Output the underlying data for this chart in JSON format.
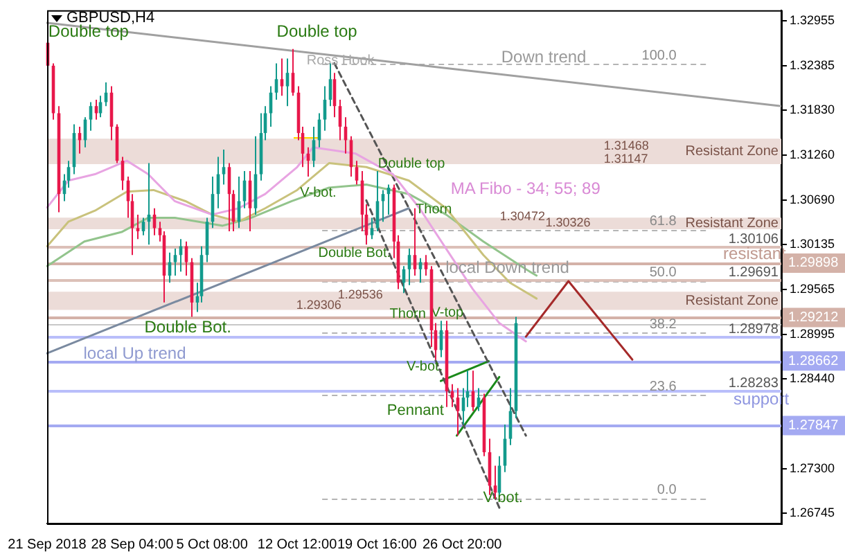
{
  "chart_data": {
    "type": "candlestick",
    "title": "GBPUSD,H4",
    "categories": [
      "21 Sep 2018",
      null,
      null,
      null,
      null,
      null,
      null,
      null,
      null,
      null,
      null,
      null,
      null,
      null,
      null,
      null,
      "28 Sep 04:00",
      null,
      null,
      null,
      null,
      null,
      null,
      null,
      null,
      null,
      null,
      null,
      null,
      null,
      null,
      "5 Oct 08:00",
      null,
      null,
      null,
      null,
      null,
      null,
      null,
      null,
      null,
      null,
      null,
      null,
      null,
      null,
      null,
      "12 Oct 12:00",
      null,
      null,
      null,
      null,
      null,
      null,
      null,
      null,
      null,
      null,
      null,
      null,
      null,
      null,
      "19 Oct 16:00",
      null,
      null,
      null,
      null,
      null,
      null,
      null,
      null,
      null,
      null,
      null,
      null,
      null,
      null,
      null,
      "26 Oct 20:00",
      null,
      null,
      null,
      null,
      null,
      null,
      null,
      null,
      null,
      null,
      null,
      null,
      null,
      null,
      null,
      null,
      null,
      null,
      null,
      null,
      null,
      null,
      null,
      null,
      null,
      null,
      null,
      null,
      null,
      null,
      null,
      null,
      null,
      null,
      null,
      null,
      null,
      null,
      null,
      null,
      null,
      null,
      null,
      null,
      null,
      null,
      null,
      null,
      null,
      null,
      null,
      null,
      null,
      null,
      null,
      null,
      null,
      null,
      null,
      null
    ],
    "ohlc": [
      [
        1.3268,
        1.3273,
        1.3234,
        1.3239
      ],
      [
        1.3239,
        1.3242,
        1.3171,
        1.3179
      ],
      [
        1.3179,
        1.3188,
        1.3054,
        1.3077
      ],
      [
        1.3077,
        1.3102,
        1.3068,
        1.3094
      ],
      [
        1.3094,
        1.3119,
        1.3085,
        1.3111
      ],
      [
        1.3111,
        1.3165,
        1.3102,
        1.3154
      ],
      [
        1.3154,
        1.3162,
        1.3128,
        1.3145
      ],
      [
        1.3145,
        1.3174,
        1.3136,
        1.3171
      ],
      [
        1.3171,
        1.3193,
        1.3157,
        1.3188
      ],
      [
        1.3188,
        1.3196,
        1.3171,
        1.3179
      ],
      [
        1.3179,
        1.3201,
        1.3174,
        1.3193
      ],
      [
        1.3193,
        1.3218,
        1.3188,
        1.3205
      ],
      [
        1.3205,
        1.3213,
        1.3145,
        1.3162
      ],
      [
        1.3162,
        1.3165,
        1.3116,
        1.3119
      ],
      [
        1.3119,
        1.3124,
        1.3082,
        1.3094
      ],
      [
        1.3094,
        1.3099,
        1.3047,
        1.3068
      ],
      [
        1.3068,
        1.3077,
        1.3,
        1.3034
      ],
      [
        1.3034,
        1.3051,
        1.302,
        1.303
      ],
      [
        1.303,
        1.3047,
        1.3025,
        1.3042
      ],
      [
        1.3042,
        1.3116,
        1.3013,
        1.3051
      ],
      [
        1.3051,
        1.3059,
        1.3025,
        1.3034
      ],
      [
        1.3034,
        1.3042,
        1.3017,
        1.3025
      ],
      [
        1.3025,
        1.303,
        1.294,
        1.2974
      ],
      [
        1.2974,
        1.3003,
        1.2965,
        1.2991
      ],
      [
        1.2991,
        1.3008,
        1.2974,
        1.3
      ],
      [
        1.3,
        1.302,
        1.2979,
        1.3011
      ],
      [
        1.3011,
        1.3017,
        1.2974,
        1.2991
      ],
      [
        1.2991,
        1.2996,
        1.2922,
        1.294
      ],
      [
        1.294,
        1.2965,
        1.2928,
        1.2948
      ],
      [
        1.2948,
        1.3011,
        1.294,
        1.3
      ],
      [
        1.3,
        1.3047,
        1.2991,
        1.3042
      ],
      [
        1.3042,
        1.3099,
        1.3034,
        1.3077
      ],
      [
        1.3077,
        1.3124,
        1.3059,
        1.3102
      ],
      [
        1.3102,
        1.3133,
        1.3089,
        1.3111
      ],
      [
        1.3111,
        1.3116,
        1.303,
        1.3077
      ],
      [
        1.3077,
        1.3082,
        1.303,
        1.3042
      ],
      [
        1.3042,
        1.3099,
        1.3034,
        1.3068
      ],
      [
        1.3068,
        1.3106,
        1.3059,
        1.3094
      ],
      [
        1.3094,
        1.3106,
        1.303,
        1.3059
      ],
      [
        1.3059,
        1.315,
        1.3051,
        1.3102
      ],
      [
        1.3102,
        1.3179,
        1.3094,
        1.3154
      ],
      [
        1.3154,
        1.3188,
        1.3145,
        1.3179
      ],
      [
        1.3179,
        1.3213,
        1.3162,
        1.3205
      ],
      [
        1.3205,
        1.3242,
        1.3196,
        1.3222
      ],
      [
        1.3222,
        1.3248,
        1.3201,
        1.3213
      ],
      [
        1.3213,
        1.3248,
        1.3188,
        1.323
      ],
      [
        1.323,
        1.326,
        1.3201,
        1.3205
      ],
      [
        1.3205,
        1.3213,
        1.3145,
        1.3154
      ],
      [
        1.3154,
        1.3162,
        1.3111,
        1.3128
      ],
      [
        1.3128,
        1.3136,
        1.3099,
        1.3119
      ],
      [
        1.3119,
        1.3162,
        1.3111,
        1.3145
      ],
      [
        1.3145,
        1.3179,
        1.3136,
        1.3171
      ],
      [
        1.3171,
        1.3213,
        1.3157,
        1.3196
      ],
      [
        1.3196,
        1.3242,
        1.3188,
        1.3222
      ],
      [
        1.3222,
        1.323,
        1.3174,
        1.3188
      ],
      [
        1.3188,
        1.3196,
        1.3145,
        1.3162
      ],
      [
        1.3162,
        1.3174,
        1.3128,
        1.3145
      ],
      [
        1.3145,
        1.315,
        1.3099,
        1.3111
      ],
      [
        1.3111,
        1.3119,
        1.3089,
        1.3094
      ],
      [
        1.3094,
        1.3106,
        1.303,
        1.3051
      ],
      [
        1.3051,
        1.3064,
        1.3013,
        1.3025
      ],
      [
        1.3025,
        1.3047,
        1.302,
        1.3034
      ],
      [
        1.3034,
        1.3106,
        1.303,
        1.3068
      ],
      [
        1.3068,
        1.3082,
        1.3042,
        1.3077
      ],
      [
        1.3077,
        1.3089,
        1.3051,
        1.3085
      ],
      [
        1.3085,
        1.3089,
        1.2996,
        1.3017
      ],
      [
        1.3017,
        1.3025,
        1.2957,
        1.2965
      ],
      [
        1.2965,
        1.2986,
        1.2952,
        1.2982
      ],
      [
        1.2982,
        1.3008,
        1.2962,
        1.3
      ],
      [
        1.3,
        1.3059,
        1.2974,
        1.2982
      ],
      [
        1.2982,
        1.2996,
        1.2965,
        1.2991
      ],
      [
        1.2991,
        1.3,
        1.2974,
        1.2982
      ],
      [
        1.2982,
        1.2986,
        1.2884,
        1.2905
      ],
      [
        1.2905,
        1.2914,
        1.2868,
        1.288
      ],
      [
        1.288,
        1.2917,
        1.2871,
        1.2905
      ],
      [
        1.2905,
        1.2917,
        1.2808,
        1.2828
      ],
      [
        1.2828,
        1.2837,
        1.2808,
        1.282
      ],
      [
        1.282,
        1.2832,
        1.2772,
        1.2803
      ],
      [
        1.2803,
        1.2832,
        1.2786,
        1.282
      ],
      [
        1.282,
        1.2854,
        1.2808,
        1.2828
      ],
      [
        1.2828,
        1.2854,
        1.2803,
        1.2808
      ],
      [
        1.2808,
        1.2832,
        1.2803,
        1.282
      ],
      [
        1.282,
        1.2825,
        1.2746,
        1.2751
      ],
      [
        1.2751,
        1.2768,
        1.2697,
        1.2709
      ],
      [
        1.2709,
        1.2734,
        1.2692,
        1.27
      ],
      [
        1.27,
        1.2746,
        1.2697,
        1.2734
      ],
      [
        1.2734,
        1.2786,
        1.2726,
        1.2768
      ],
      [
        1.2768,
        1.2832,
        1.276,
        1.2803
      ],
      [
        1.2803,
        1.2922,
        1.2794,
        1.2914
      ],
      null,
      null,
      null,
      null,
      null,
      null,
      null,
      null,
      null,
      null,
      null,
      null,
      null,
      null,
      null,
      null,
      null,
      null,
      null,
      null,
      null,
      null,
      null,
      null,
      null,
      null,
      null,
      null,
      null,
      null,
      null,
      null,
      null,
      null,
      null,
      null,
      null,
      null,
      null,
      null,
      null,
      null,
      null,
      null,
      null,
      null,
      null,
      null,
      null,
      null
    ],
    "colors": [
      "#e8174a",
      "#e8174a",
      "#e8174a",
      "#129a8c",
      "#129a8c",
      "#129a8c",
      "#e8174a",
      "#129a8c",
      "#129a8c",
      "#e8174a",
      "#129a8c",
      "#129a8c",
      "#e8174a",
      "#e8174a",
      "#e8174a",
      "#e8174a",
      "#e8174a",
      "#e8174a",
      "#129a8c",
      "#129a8c",
      "#e8174a",
      "#e8174a",
      "#e8174a",
      "#129a8c",
      "#129a8c",
      "#129a8c",
      "#e8174a",
      "#e8174a",
      "#129a8c",
      "#129a8c",
      "#129a8c",
      "#129a8c",
      "#129a8c",
      "#129a8c",
      "#e8174a",
      "#e8174a",
      "#129a8c",
      "#129a8c",
      "#e8174a",
      "#129a8c",
      "#129a8c",
      "#129a8c",
      "#129a8c",
      "#129a8c",
      "#e8174a",
      "#129a8c",
      "#e8174a",
      "#e8174a",
      "#e8174a",
      "#e8174a",
      "#129a8c",
      "#129a8c",
      "#129a8c",
      "#129a8c",
      "#e8174a",
      "#e8174a",
      "#e8174a",
      "#e8174a",
      "#e8174a",
      "#e8174a",
      "#e8174a",
      "#129a8c",
      "#129a8c",
      "#129a8c",
      "#129a8c",
      "#e8174a",
      "#e8174a",
      "#129a8c",
      "#129a8c",
      "#e8174a",
      "#129a8c",
      "#e8174a",
      "#e8174a",
      "#e8174a",
      "#129a8c",
      "#e8174a",
      "#e8174a",
      "#e8174a",
      "#129a8c",
      "#129a8c",
      "#e8174a",
      "#129a8c",
      "#e8174a",
      "#e8174a",
      "#e8174a",
      "#129a8c",
      "#129a8c",
      "#129a8c",
      "#129a8c",
      null,
      null,
      null,
      null,
      null,
      null,
      null,
      null,
      null,
      null,
      null,
      null,
      null,
      null,
      null,
      null,
      null,
      null,
      null,
      null,
      null,
      null,
      null,
      null,
      null,
      null,
      null,
      null,
      null,
      null,
      null,
      null,
      null,
      null,
      null,
      null,
      null,
      null,
      null,
      null,
      null,
      null,
      null,
      null,
      null,
      null,
      null,
      null,
      null,
      null
    ],
    "ylim": [
      1.2661,
      1.3309
    ],
    "yticks": [
      1.32955,
      1.32385,
      {
        "value": 1.3183,
        "label": "1.31830"
      },
      {
        "value": 1.3126,
        "label": "1.31260"
      },
      {
        "value": 1.3069,
        "label": "1.30690"
      },
      1.30135,
      1.29565,
      1.28995,
      {
        "value": 1.2844,
        "label": "1.28440"
      },
      {
        "value": 1.273,
        "label": "1.27300"
      },
      1.26745
    ],
    "series": [
      {
        "type": "line",
        "color": "#e8a4e2",
        "values": [
          1.306,
          null,
          null,
          null,
          1.3094,
          null,
          null,
          null,
          null,
          1.3102,
          null,
          null,
          null,
          null,
          null,
          1.3119,
          null,
          null,
          null,
          1.3102,
          null,
          null,
          null,
          null,
          1.3068,
          null,
          null,
          null,
          null,
          null,
          null,
          1.3051,
          null,
          null,
          null,
          null,
          1.3059,
          null,
          null,
          null,
          null,
          1.3077,
          null,
          null,
          null,
          null,
          null,
          1.3111,
          null,
          null,
          1.3136,
          null,
          null,
          null,
          null,
          null,
          null,
          null,
          1.3128,
          null,
          null,
          null,
          null,
          null,
          null,
          1.3102,
          null,
          null,
          null,
          null,
          1.3059,
          null,
          null,
          null,
          null,
          1.3008,
          null,
          null,
          null,
          null,
          1.2957,
          null,
          null,
          null,
          null,
          1.2914,
          null,
          null,
          null,
          null,
          1.2891,
          null,
          null,
          null,
          null,
          null,
          null,
          null,
          null,
          null,
          null,
          null,
          null,
          null,
          null,
          null,
          null,
          null,
          null,
          null,
          null,
          null,
          null,
          null,
          null,
          null,
          null,
          null,
          null,
          null,
          null,
          null,
          null,
          null,
          null,
          null,
          null,
          null,
          null,
          null,
          null,
          null,
          null,
          null,
          null,
          null,
          null,
          null,
          null
        ]
      },
      {
        "type": "line",
        "color": "#c9c27c",
        "values": [
          1.3011,
          null,
          null,
          null,
          1.3042,
          null,
          null,
          null,
          null,
          1.3056,
          null,
          null,
          null,
          null,
          null,
          1.308,
          null,
          null,
          null,
          null,
          1.3082,
          null,
          null,
          null,
          null,
          null,
          1.3068,
          null,
          null,
          null,
          null,
          1.3051,
          null,
          null,
          null,
          null,
          1.3042,
          null,
          null,
          null,
          null,
          1.3059,
          null,
          null,
          null,
          null,
          null,
          1.3082,
          null,
          null,
          null,
          null,
          null,
          1.3116,
          null,
          null,
          null,
          null,
          null,
          null,
          1.3111,
          null,
          null,
          null,
          null,
          null,
          null,
          null,
          1.3094,
          null,
          null,
          null,
          null,
          null,
          null,
          1.3059,
          null,
          null,
          null,
          null,
          null,
          null,
          1.3,
          null,
          null,
          null,
          null,
          1.2965,
          null,
          null,
          null,
          null,
          1.2945,
          null,
          null,
          null,
          null,
          null,
          null,
          null,
          null,
          null,
          null,
          null,
          null,
          null,
          null,
          null,
          null,
          null,
          null,
          null,
          null,
          null,
          null,
          null,
          null,
          null,
          null,
          null,
          null,
          null,
          null,
          null,
          null,
          null,
          null,
          null,
          null,
          null,
          null,
          null,
          null,
          null,
          null,
          null,
          null,
          null,
          null
        ]
      },
      {
        "type": "line",
        "color": "#92c48c",
        "values": [
          1.2986,
          null,
          null,
          null,
          null,
          null,
          null,
          1.3017,
          null,
          null,
          null,
          null,
          null,
          null,
          1.3029,
          null,
          null,
          null,
          null,
          1.3047,
          null,
          null,
          null,
          null,
          1.3047,
          null,
          null,
          null,
          null,
          null,
          null,
          null,
          null,
          1.3037,
          null,
          null,
          null,
          null,
          1.3046,
          null,
          null,
          null,
          null,
          null,
          null,
          null,
          1.3068,
          null,
          null,
          null,
          null,
          null,
          null,
          1.3085,
          null,
          null,
          null,
          null,
          null,
          null,
          1.3089,
          null,
          null,
          null,
          null,
          null,
          null,
          null,
          1.3077,
          null,
          null,
          null,
          null,
          null,
          null,
          1.3051,
          null,
          null,
          null,
          null,
          null,
          null,
          1.3017,
          null,
          null,
          null,
          null,
          null,
          null,
          null,
          1.2982,
          null,
          1.2974,
          null,
          null,
          null,
          null,
          null,
          null,
          null,
          null,
          null,
          null,
          null,
          null,
          null,
          null,
          null,
          null,
          null,
          null,
          null,
          null,
          null,
          null,
          null,
          null,
          null,
          null,
          null,
          null,
          null,
          null,
          null,
          null,
          null,
          null,
          null,
          null,
          null,
          null,
          null,
          null,
          null,
          null,
          null,
          null,
          null,
          null
        ]
      },
      {
        "type": "line",
        "color": "#a0a0a0",
        "values": [
          1.3293,
          null,
          null,
          null,
          null,
          null,
          null,
          null,
          null,
          null,
          null,
          null,
          null,
          null,
          null,
          null,
          null,
          null,
          null,
          null,
          null,
          null,
          null,
          null,
          null,
          null,
          null,
          null,
          null,
          null,
          null,
          null,
          null,
          null,
          null,
          null,
          null,
          null,
          null,
          null,
          null,
          null,
          null,
          null,
          null,
          null,
          null,
          null,
          null,
          null,
          null,
          null,
          null,
          null,
          null,
          null,
          null,
          null,
          null,
          null,
          null,
          null,
          null,
          null,
          null,
          null,
          null,
          null,
          null,
          null,
          null,
          null,
          null,
          null,
          null,
          null,
          null,
          null,
          null,
          null,
          null,
          null,
          null,
          null,
          null,
          null,
          null,
          null,
          null,
          null,
          null,
          null,
          null,
          null,
          null,
          null,
          null,
          null,
          null,
          null,
          null,
          null,
          null,
          null,
          null,
          null,
          null,
          null,
          null,
          null,
          null,
          null,
          null,
          null,
          null,
          null,
          null,
          null,
          null,
          null,
          null,
          null,
          null,
          null,
          null,
          null,
          null,
          null,
          null,
          null,
          null,
          null,
          null,
          null,
          null,
          null,
          null,
          null,
          1.3188
        ]
      },
      {
        "type": "line",
        "color": "#7a8aa0",
        "values": [
          1.2876,
          null,
          null,
          null,
          null,
          null,
          null,
          null,
          null,
          null,
          null,
          null,
          null,
          null,
          null,
          null,
          null,
          null,
          null,
          null,
          null,
          null,
          null,
          null,
          null,
          null,
          null,
          null,
          null,
          null,
          null,
          null,
          null,
          null,
          null,
          null,
          null,
          null,
          null,
          null,
          null,
          null,
          null,
          null,
          null,
          null,
          null,
          null,
          null,
          null,
          null,
          null,
          null,
          null,
          null,
          null,
          null,
          null,
          null,
          null,
          null,
          null,
          null,
          null,
          null,
          null,
          null,
          null,
          1.3059,
          null,
          null,
          null,
          null,
          null,
          null,
          null,
          null,
          null,
          null,
          null,
          null,
          null,
          null,
          null,
          null,
          null,
          null,
          null,
          null,
          null,
          null,
          null,
          null,
          null,
          null,
          null,
          null,
          null,
          null,
          null,
          null,
          null,
          null,
          null,
          null,
          null,
          null,
          null,
          null,
          null,
          null,
          null,
          null,
          null,
          null,
          null,
          null,
          null,
          null,
          null,
          null,
          null,
          null,
          null,
          null,
          null,
          null,
          null,
          null,
          null,
          null,
          null,
          null,
          null,
          null,
          null,
          null,
          null,
          null
        ]
      },
      {
        "type": "line",
        "color": "#555555",
        "line_style": "dashed",
        "values": [
          null,
          null,
          null,
          null,
          null,
          null,
          null,
          null,
          null,
          null,
          null,
          null,
          null,
          null,
          null,
          null,
          null,
          null,
          null,
          null,
          null,
          null,
          null,
          null,
          null,
          null,
          null,
          null,
          null,
          null,
          null,
          null,
          null,
          null,
          null,
          null,
          null,
          null,
          null,
          null,
          null,
          null,
          null,
          null,
          null,
          null,
          null,
          null,
          null,
          null,
          null,
          null,
          null,
          null,
          1.3242,
          null,
          null,
          null,
          null,
          null,
          null,
          null,
          null,
          null,
          null,
          null,
          null,
          null,
          null,
          null,
          null,
          null,
          null,
          null,
          null,
          null,
          null,
          null,
          null,
          null,
          null,
          null,
          null,
          null,
          null,
          null,
          null,
          null,
          null,
          null,
          1.2772,
          null,
          null,
          null,
          null,
          null,
          null,
          null,
          null,
          null,
          null,
          null,
          null,
          null,
          null,
          null,
          null,
          null,
          null,
          null,
          null,
          null,
          null,
          null,
          null,
          null,
          null,
          null,
          null,
          null,
          null,
          null,
          null,
          null,
          null,
          null,
          null,
          null,
          null,
          null,
          null,
          null,
          null,
          null,
          null,
          null,
          null,
          null,
          null
        ]
      },
      {
        "type": "line",
        "color": "#555555",
        "line_style": "dashed",
        "values": [
          null,
          null,
          null,
          null,
          null,
          null,
          null,
          null,
          null,
          null,
          null,
          null,
          null,
          null,
          null,
          null,
          null,
          null,
          null,
          null,
          null,
          null,
          null,
          null,
          null,
          null,
          null,
          null,
          null,
          null,
          null,
          null,
          null,
          null,
          null,
          null,
          null,
          null,
          null,
          null,
          null,
          null,
          null,
          null,
          null,
          null,
          null,
          null,
          null,
          null,
          null,
          null,
          null,
          null,
          null,
          null,
          null,
          null,
          null,
          null,
          1.3069,
          null,
          null,
          null,
          null,
          null,
          null,
          null,
          null,
          null,
          null,
          null,
          null,
          null,
          null,
          null,
          null,
          null,
          null,
          null,
          null,
          null,
          null,
          null,
          null,
          1.2681,
          null,
          null,
          null,
          null,
          null,
          null,
          null,
          null,
          null,
          null,
          null,
          null,
          null,
          null,
          null,
          null,
          null,
          null,
          null,
          null,
          null,
          null,
          null,
          null,
          null,
          null,
          null,
          null,
          null,
          null,
          null,
          null,
          null,
          null,
          null,
          null,
          null,
          null,
          null,
          null,
          null,
          null,
          null,
          null,
          null,
          null,
          null,
          null,
          null,
          null,
          null,
          null,
          null
        ]
      },
      {
        "type": "line",
        "color": "#1a8a1a",
        "values": [
          null,
          null,
          null,
          null,
          null,
          null,
          null,
          null,
          null,
          null,
          null,
          null,
          null,
          null,
          null,
          null,
          null,
          null,
          null,
          null,
          null,
          null,
          null,
          null,
          null,
          null,
          null,
          null,
          null,
          null,
          null,
          null,
          null,
          null,
          null,
          null,
          null,
          null,
          null,
          null,
          null,
          null,
          null,
          null,
          null,
          null,
          null,
          null,
          null,
          null,
          null,
          null,
          null,
          null,
          null,
          null,
          null,
          null,
          null,
          null,
          null,
          null,
          null,
          null,
          null,
          null,
          null,
          null,
          null,
          null,
          null,
          null,
          null,
          null,
          1.2841,
          null,
          null,
          null,
          null,
          null,
          null,
          null,
          null,
          1.2866,
          null,
          null,
          null,
          null,
          null,
          null,
          null,
          null,
          null,
          null,
          null,
          null,
          null,
          null,
          null,
          null,
          null,
          null,
          null,
          null,
          null,
          null,
          null,
          null,
          null,
          null,
          null,
          null,
          null,
          null,
          null,
          null,
          null,
          null,
          null,
          null,
          null,
          null,
          null,
          null,
          null,
          null,
          null,
          null,
          null,
          null,
          null,
          null,
          null,
          null,
          null,
          null,
          null,
          null,
          null
        ]
      },
      {
        "type": "line",
        "color": "#1a8a1a",
        "values": [
          null,
          null,
          null,
          null,
          null,
          null,
          null,
          null,
          null,
          null,
          null,
          null,
          null,
          null,
          null,
          null,
          null,
          null,
          null,
          null,
          null,
          null,
          null,
          null,
          null,
          null,
          null,
          null,
          null,
          null,
          null,
          null,
          null,
          null,
          null,
          null,
          null,
          null,
          null,
          null,
          null,
          null,
          null,
          null,
          null,
          null,
          null,
          null,
          null,
          null,
          null,
          null,
          null,
          null,
          null,
          null,
          null,
          null,
          null,
          null,
          null,
          null,
          null,
          null,
          null,
          null,
          null,
          null,
          null,
          null,
          null,
          null,
          null,
          null,
          null,
          null,
          null,
          1.2772,
          null,
          null,
          null,
          null,
          null,
          null,
          null,
          1.2846,
          null,
          null,
          null,
          null,
          null,
          null,
          null,
          null,
          null,
          null,
          null,
          null,
          null,
          null,
          null,
          null,
          null,
          null,
          null,
          null,
          null,
          null,
          null,
          null,
          null,
          null,
          null,
          null,
          null,
          null,
          null,
          null,
          null,
          null,
          null,
          null,
          null,
          null,
          null,
          null,
          null,
          null,
          null,
          null,
          null,
          null,
          null,
          null,
          null,
          null,
          null,
          null,
          null
        ]
      },
      {
        "type": "line",
        "color": "#a52a2a",
        "values": [
          null,
          null,
          null,
          null,
          null,
          null,
          null,
          null,
          null,
          null,
          null,
          null,
          null,
          null,
          null,
          null,
          null,
          null,
          null,
          null,
          null,
          null,
          null,
          null,
          null,
          null,
          null,
          null,
          null,
          null,
          null,
          null,
          null,
          null,
          null,
          null,
          null,
          null,
          null,
          null,
          null,
          null,
          null,
          null,
          null,
          null,
          null,
          null,
          null,
          null,
          null,
          null,
          null,
          null,
          null,
          null,
          null,
          null,
          null,
          null,
          null,
          null,
          null,
          null,
          null,
          null,
          null,
          null,
          null,
          null,
          null,
          null,
          null,
          null,
          null,
          null,
          null,
          null,
          null,
          null,
          null,
          null,
          null,
          null,
          null,
          null,
          null,
          null,
          null,
          null,
          1.2897,
          null,
          null,
          null,
          null,
          null,
          null,
          null,
          1.2967,
          null,
          null,
          null,
          null,
          null,
          null,
          null,
          null,
          null,
          null,
          null,
          1.2868,
          null,
          null,
          null,
          null,
          null,
          null,
          null,
          null,
          null,
          null,
          null,
          null,
          null,
          null,
          null,
          null,
          null,
          null,
          null,
          null,
          null,
          null,
          null,
          null,
          null,
          null,
          null,
          null
        ]
      }
    ],
    "bands": [
      {
        "axis": "y",
        "from": 1.31147,
        "to": 1.31468,
        "label": "Resistant Zone",
        "color": "#ecdcd8"
      },
      {
        "axis": "y",
        "from": 1.30326,
        "to": 1.30472,
        "label": "Resistant Zone",
        "color": "#ecdcd8"
      },
      {
        "axis": "y",
        "from": 1.29306,
        "to": 1.29536,
        "label": "Resistant Zone",
        "color": "#ecdcd8"
      }
    ],
    "ref_lines": [
      {
        "axis": "y",
        "value": 1.3241,
        "color": "#b4b4b4",
        "line_style": "dashed"
      },
      {
        "axis": "y",
        "value": 1.3032,
        "color": "#b4b4b4",
        "line_style": "dashed"
      },
      {
        "axis": "y",
        "value": 1.2967,
        "color": "#b4b4b4",
        "line_style": "dashed"
      },
      {
        "axis": "y",
        "value": 1.2902,
        "color": "#b4b4b4",
        "line_style": "dashed"
      },
      {
        "axis": "y",
        "value": 1.2823,
        "color": "#b4b4b4",
        "line_style": "dashed"
      },
      {
        "axis": "y",
        "value": 1.2693,
        "color": "#b4b4b4",
        "line_style": "dashed"
      },
      {
        "axis": "y",
        "value": 1.30106,
        "label": "1.30106",
        "color": "#dcc0b8"
      },
      {
        "axis": "y",
        "value": 1.29898,
        "label": "1.29898",
        "color": "#d4b2a8"
      },
      {
        "axis": "y",
        "value": 1.29691,
        "label": "1.29691",
        "color": "#dcc0b8"
      },
      {
        "axis": "y",
        "value": 1.29212,
        "label": "1.29212",
        "color": "#d4b2a8"
      },
      {
        "axis": "y",
        "value": 1.2912,
        "color": "#c8c8c8"
      },
      {
        "axis": "y",
        "value": 1.28978,
        "label": "1.28978",
        "color": "#b9befa"
      },
      {
        "axis": "y",
        "value": 1.28662,
        "label": "1.28662",
        "color": "#a4aaf2"
      },
      {
        "axis": "y",
        "value": 1.28283,
        "label": "1.28283",
        "color": "#b9befa"
      },
      {
        "axis": "y",
        "value": 1.27847,
        "label": "1.27847",
        "color": "#a4aaf2"
      }
    ],
    "annotations": [
      {
        "text": "Double top",
        "y": 1.3292
      },
      "Double top",
      {
        "text": "Ross Hook",
        "y": 1.3254
      },
      "Down trend",
      {
        "text": "Double Bot.",
        "y": 1.2919
      },
      "local Up trend",
      {
        "text": "V-bot.",
        "y": 1.3087
      },
      "Double top",
      {
        "text": "Thorn",
        "y": 1.3066
      },
      {
        "text": "Double Bot.",
        "y": 1.3011
      },
      "MA Fibo - 34; 55; 89",
      {
        "text": "local Down trend",
        "y": 1.2994
      },
      {
        "text": "Thorn",
        "y": 1.2934
      },
      {
        "text": "V-top",
        "y": 1.2936
      },
      {
        "text": "V-bot.",
        "y": 1.2868
      },
      "Pennant",
      {
        "text": "V-bot.",
        "y": 1.2703
      },
      {
        "text": "resistant",
        "y": 1.3011
      },
      {
        "text": "support",
        "y": 1.2828
      },
      {
        "text": "1.31468",
        "y": 1.31468
      },
      {
        "text": "1.31147",
        "y": 1.31147
      },
      {
        "text": "1.30472",
        "y": 1.30472
      },
      {
        "text": "1.30326",
        "y": 1.30326
      },
      {
        "text": "1.29536",
        "y": 1.29536
      },
      {
        "text": "1.29306",
        "y": 1.29306
      },
      {
        "text": "100.0",
        "y": 1.3241
      },
      {
        "text": "61.8",
        "y": 1.3032
      },
      {
        "text": "50.0",
        "y": 1.2967
      },
      {
        "text": "38.2",
        "y": 1.2902
      },
      {
        "text": "23.6",
        "y": 1.2823
      },
      {
        "text": "0.0",
        "y": 1.2693
      }
    ]
  }
}
